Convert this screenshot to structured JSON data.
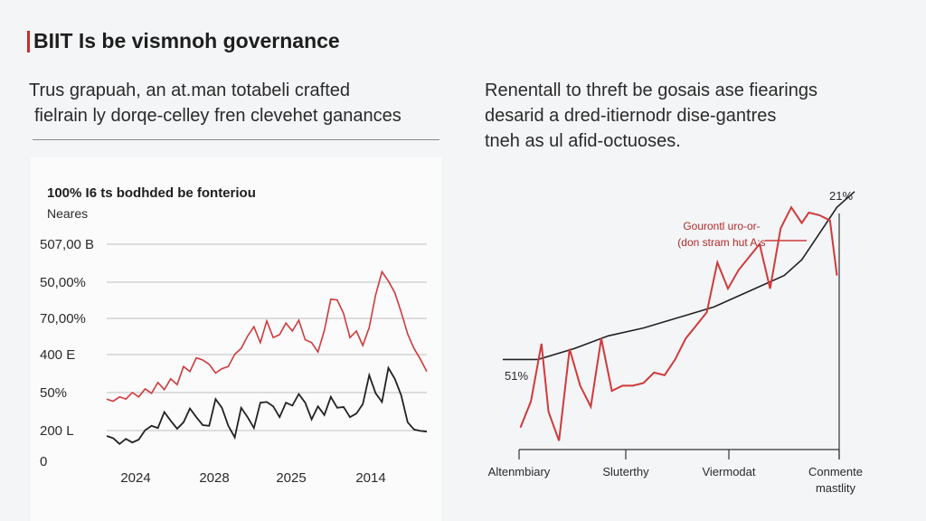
{
  "header": {
    "title": "BIIT Is be vismnoh governance",
    "intro_left_line1": "Trus grapuah, an at.man totabeli crafted",
    "intro_left_line2": "fielrain ly dorqe-celley fren clevehet ganances",
    "intro_right_line1": "Renentall to threft be gosais ase fiearings",
    "intro_right_line2": "desarid a dred-itiernodr dise-gantres",
    "intro_right_line3": "tneh as ul afid-octuoses."
  },
  "colors": {
    "accent_red": "#cc2b2b",
    "series_red": "#d03a3a",
    "series_black": "#222222",
    "grid": "#bfbfbf"
  },
  "chart_data": [
    {
      "type": "line",
      "title": "100% I6 ts bodhded be fonteriou",
      "ylabel": "Neares",
      "y_tick_labels": [
        "507,00 B",
        "50,00%",
        "70,00%",
        "400 E",
        "50%",
        "200 L",
        "0"
      ],
      "x_tick_labels": [
        "2024",
        "2028",
        "2025",
        "2014"
      ],
      "ylim": [
        0,
        600
      ],
      "xlim": [
        0,
        100
      ],
      "series": [
        {
          "name": "red",
          "x": [
            0,
            2,
            4,
            6,
            8,
            10,
            12,
            14,
            16,
            18,
            20,
            22,
            24,
            26,
            28,
            30,
            32,
            34,
            36,
            38,
            40,
            42,
            44,
            46,
            48,
            50,
            52,
            54,
            56,
            58,
            60,
            62,
            64,
            66,
            68,
            70,
            72,
            74,
            76,
            78,
            80,
            82,
            84,
            86,
            88,
            90,
            92,
            94,
            96,
            98,
            100
          ],
          "values": [
            172,
            166,
            178,
            172,
            190,
            178,
            200,
            188,
            218,
            198,
            228,
            212,
            262,
            248,
            286,
            280,
            268,
            244,
            256,
            262,
            296,
            312,
            346,
            372,
            328,
            388,
            342,
            350,
            382,
            360,
            390,
            336,
            328,
            302,
            362,
            448,
            446,
            408,
            342,
            360,
            320,
            370,
            460,
            524,
            498,
            466,
            412,
            352,
            312,
            282,
            248
          ]
        },
        {
          "name": "black",
          "x": [
            0,
            2,
            4,
            6,
            8,
            10,
            12,
            14,
            16,
            18,
            20,
            22,
            24,
            26,
            28,
            30,
            32,
            34,
            36,
            38,
            40,
            42,
            44,
            46,
            48,
            50,
            52,
            54,
            56,
            58,
            60,
            62,
            64,
            66,
            68,
            70,
            72,
            74,
            76,
            78,
            80,
            82,
            84,
            86,
            88,
            90,
            92,
            94,
            96,
            98,
            100
          ],
          "values": [
            70,
            64,
            48,
            62,
            52,
            60,
            86,
            98,
            92,
            136,
            112,
            90,
            108,
            146,
            122,
            100,
            98,
            172,
            148,
            98,
            66,
            148,
            122,
            92,
            162,
            164,
            152,
            122,
            162,
            154,
            186,
            162,
            116,
            152,
            128,
            178,
            148,
            150,
            122,
            132,
            158,
            238,
            188,
            164,
            258,
            228,
            182,
            108,
            88,
            84,
            82
          ]
        }
      ]
    },
    {
      "type": "line",
      "x_tick_labels": [
        "Altenmbiary",
        "Sluterthy",
        "Viermodat",
        "Conmente",
        "mastlity"
      ],
      "xlim": [
        0,
        100
      ],
      "ylim": [
        0,
        100
      ],
      "annotations": {
        "end_value": "21%",
        "start_value": "51%",
        "callout_line1": "Gourontl uro-or-",
        "callout_line2": "(don stram hut A:s"
      },
      "series": [
        {
          "name": "red",
          "x": [
            5,
            8,
            11,
            13,
            16,
            19,
            22,
            25,
            28,
            31,
            34,
            37,
            40,
            43,
            46,
            49,
            52,
            55,
            58,
            61,
            64,
            67,
            70,
            73,
            76,
            79,
            82,
            85,
            87,
            90,
            93,
            95
          ],
          "values": [
            8,
            18,
            40,
            14,
            3,
            38,
            24,
            16,
            42,
            22,
            24,
            24,
            25,
            29,
            28,
            34,
            42,
            47,
            52,
            71,
            61,
            68,
            73,
            78,
            61,
            84,
            92,
            86,
            90,
            89,
            87,
            66
          ]
        },
        {
          "name": "black",
          "x": [
            0,
            10,
            20,
            30,
            40,
            50,
            60,
            70,
            80,
            85,
            90,
            95,
            100
          ],
          "values": [
            34,
            34,
            38,
            43,
            46,
            50,
            54,
            60,
            66,
            72,
            82,
            92,
            98
          ]
        }
      ]
    }
  ]
}
